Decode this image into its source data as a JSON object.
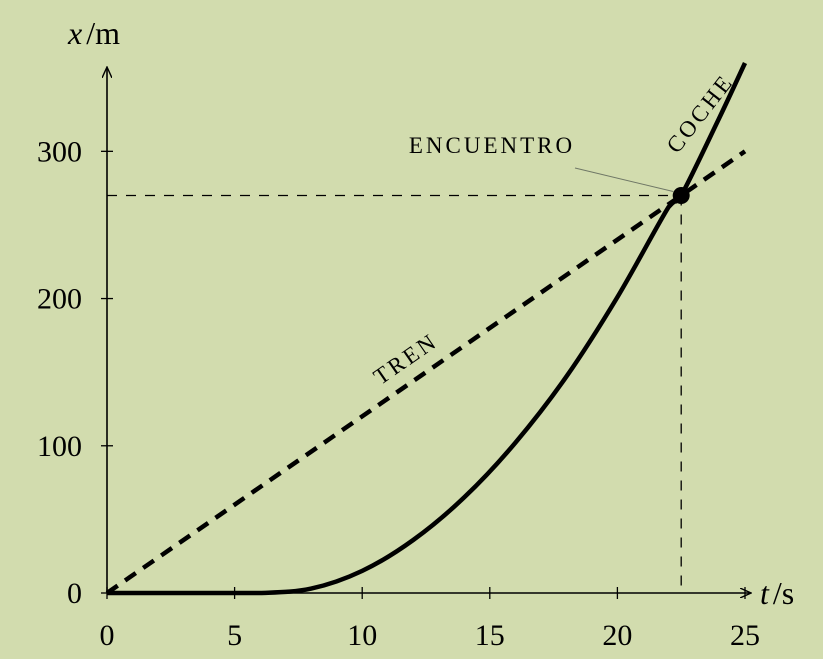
{
  "chart_data": {
    "type": "line",
    "x_axis": {
      "var": "t",
      "unit": "s",
      "min": 0,
      "max": 25,
      "ticks": [
        0,
        5,
        10,
        15,
        20,
        25
      ]
    },
    "y_axis": {
      "var": "x",
      "unit": "m",
      "min": 0,
      "max": 360,
      "ticks": [
        0,
        100,
        200,
        300
      ]
    },
    "grid": false,
    "series": [
      {
        "name": "TREN",
        "style": "dashed",
        "x": [
          0,
          22.5,
          25
        ],
        "y": [
          0,
          270,
          300
        ]
      },
      {
        "name": "COCHE",
        "style": "solid",
        "x": [
          0,
          2,
          4,
          6,
          8,
          10,
          12,
          14,
          16,
          18,
          20,
          22,
          22.5,
          24,
          25
        ],
        "y": [
          0,
          0,
          0,
          0,
          3,
          15,
          36,
          65,
          102,
          147,
          201,
          262,
          270,
          323,
          360
        ]
      }
    ],
    "annotations": [
      {
        "label": "ENCUENTRO",
        "x": 22.5,
        "y": 270
      }
    ]
  }
}
